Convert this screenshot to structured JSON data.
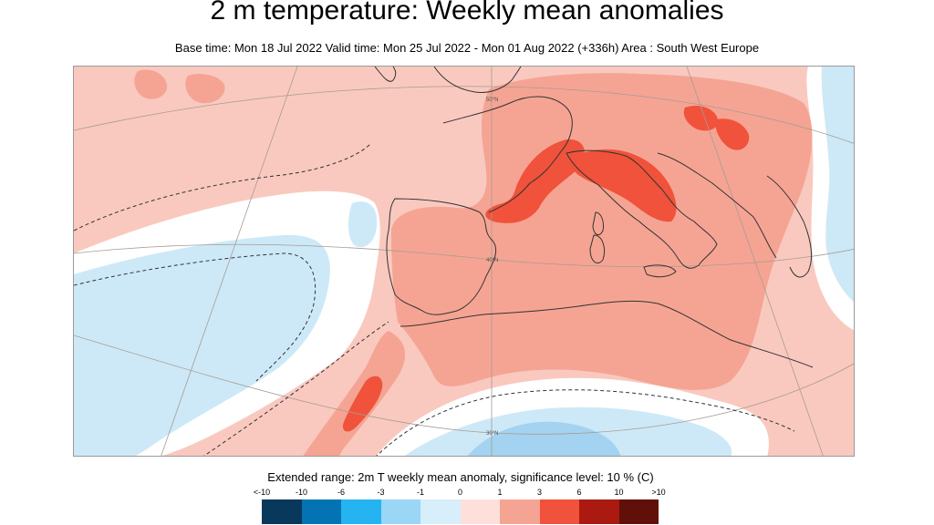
{
  "title": "2 m temperature: Weekly mean anomalies",
  "subtitle": "Base time: Mon 18 Jul 2022 Valid time: Mon 25 Jul 2022 - Mon 01 Aug 2022 (+336h) Area : South West Europe",
  "map": {
    "area": "South West Europe",
    "latitude_labels": [
      "50°N",
      "40°N",
      "30°N"
    ],
    "colors": {
      "background_anomaly": "#f9c9bf",
      "warm_anomaly": "#f5a493",
      "strong_warm": "#f0523b",
      "cool_anomaly": "#cde9f7",
      "cool_stronger": "#a3d3f0",
      "neutral": "#ffffff",
      "coast": "#333333",
      "grid": "#a89b91"
    }
  },
  "legend": {
    "title": "Extended range: 2m T weekly mean anomaly, significance level: 10 % (C)",
    "ticks": [
      "<-10",
      "-10",
      "-6",
      "-3",
      "-1",
      "0",
      "1",
      "3",
      "6",
      "10",
      ">10"
    ],
    "colors": [
      "#08385b",
      "#0473b4",
      "#26b3f2",
      "#9bd6f6",
      "#d7eefb",
      "#fde0da",
      "#f5a493",
      "#f0523b",
      "#ab1a10",
      "#611009"
    ]
  }
}
